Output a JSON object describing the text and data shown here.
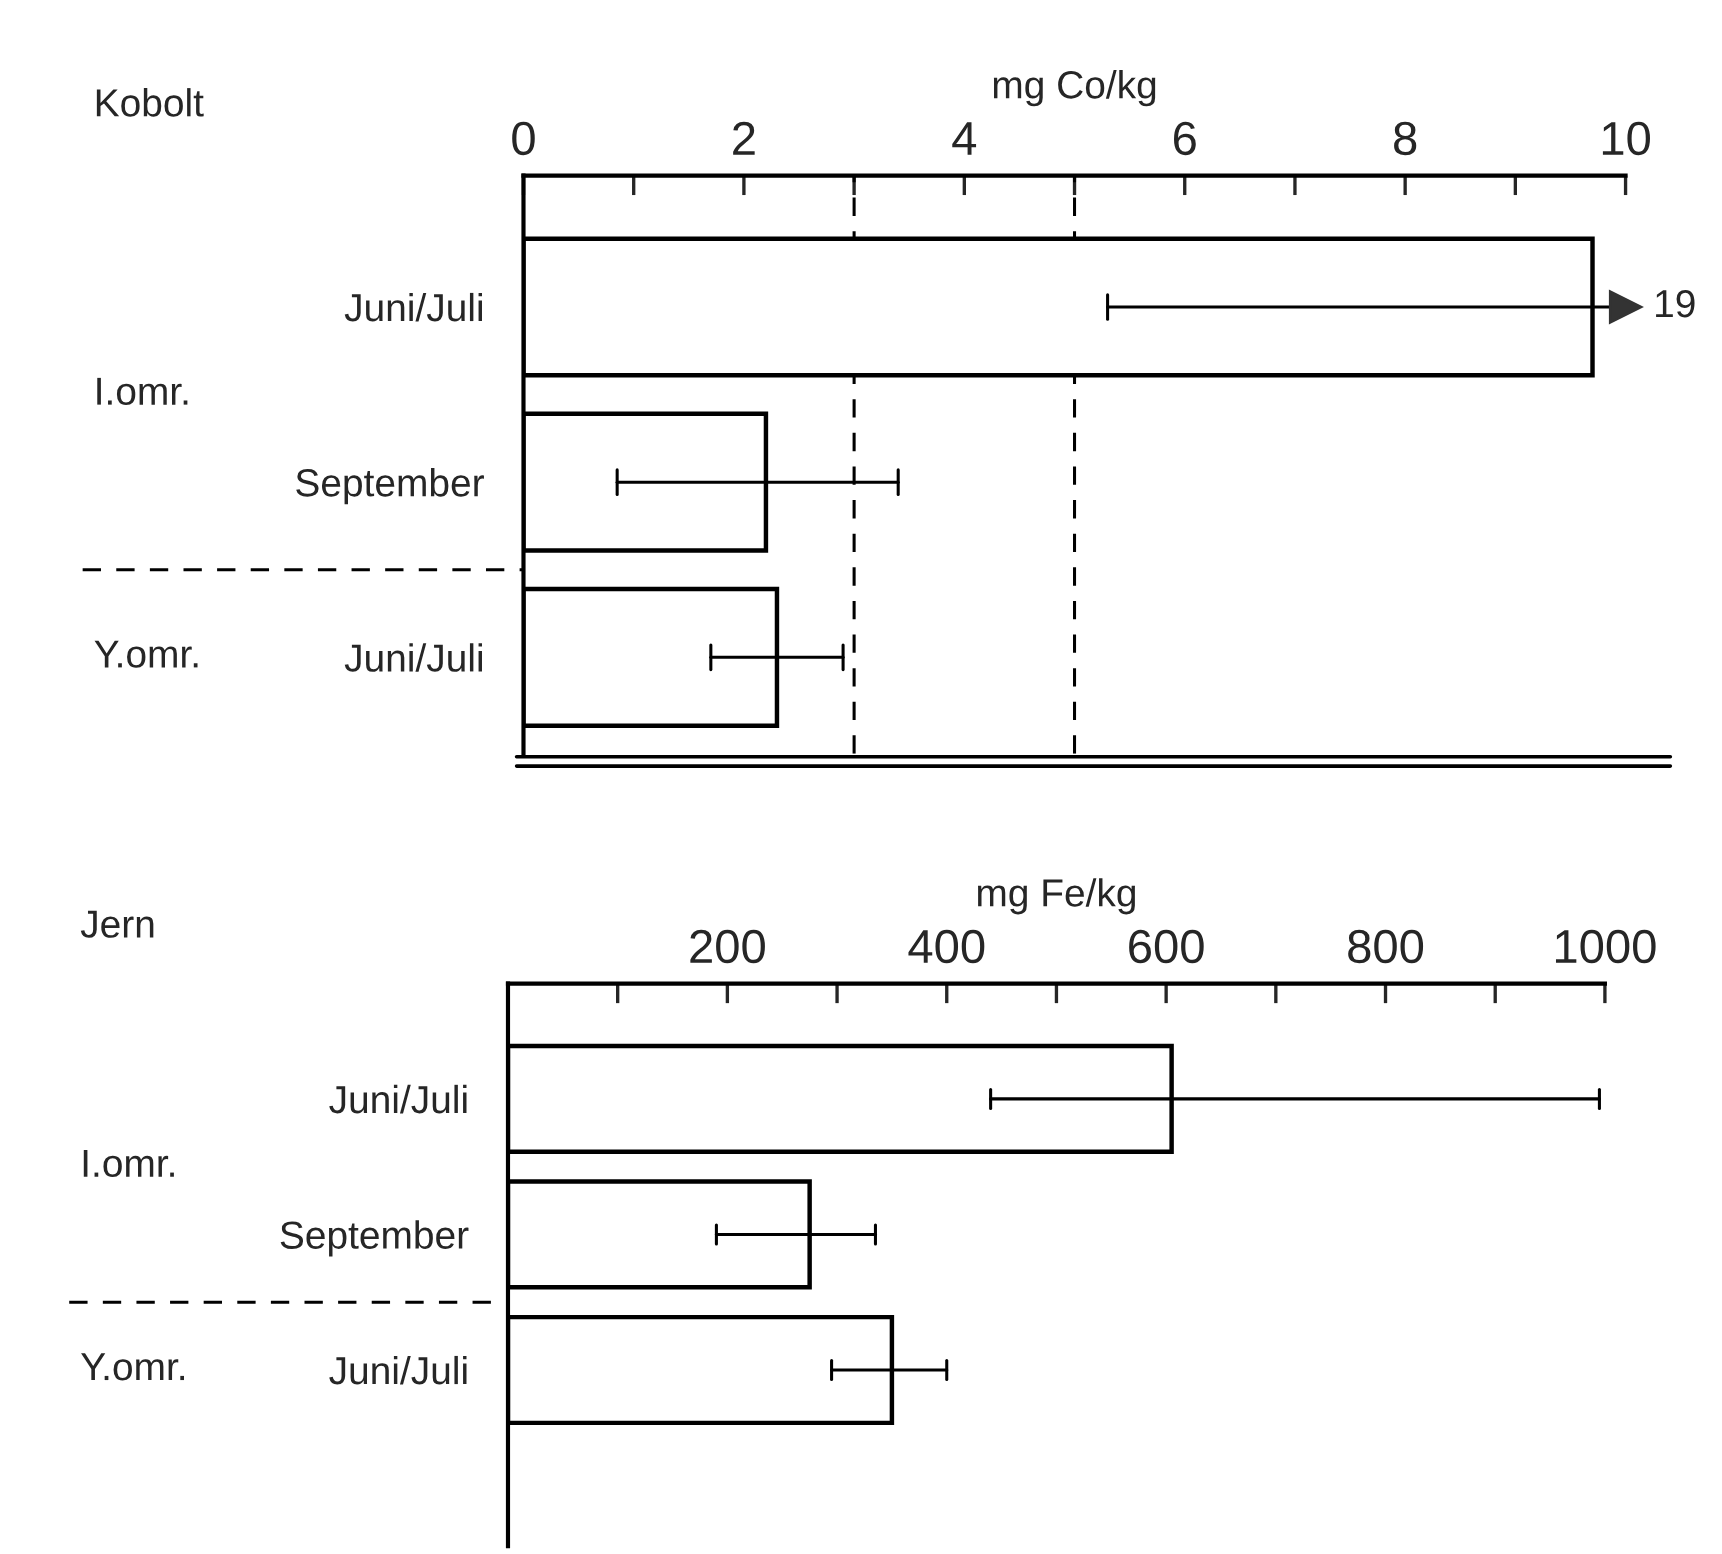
{
  "chart_data": [
    {
      "type": "bar",
      "orientation": "horizontal",
      "title": "Kobolt",
      "xlabel": "mg Co/kg",
      "categories": [
        "Juni/Juli",
        "September",
        "Juni/Juli"
      ],
      "values": [
        9.7,
        2.2,
        2.3
      ],
      "color": "#ffffff",
      "errors": [
        [
          5.3,
          10
        ],
        [
          0.85,
          3.4
        ],
        [
          1.7,
          2.9
        ]
      ],
      "xlim": [
        0,
        10
      ],
      "xticks": [
        0,
        {
          "value": 1,
          "label": null
        },
        2,
        {
          "value": 3,
          "label": null
        },
        4,
        {
          "value": 5,
          "label": null
        },
        6,
        {
          "value": 7,
          "label": null
        },
        8,
        {
          "value": 9,
          "label": null
        },
        10
      ],
      "ref_lines": [
        {
          "axis": "x",
          "value": 3,
          "line_style": "dashed"
        },
        {
          "axis": "x",
          "value": 5,
          "line_style": "dashed"
        }
      ],
      "annotations": [
        "I.omr.",
        "Y.omr.",
        "19"
      ]
    },
    {
      "type": "bar",
      "orientation": "horizontal",
      "title": "Jern",
      "xlabel": "mg Fe/kg",
      "categories": [
        "Juni/Juli",
        "September",
        "Juni/Juli"
      ],
      "values": [
        605,
        275,
        350
      ],
      "color": "#ffffff",
      "errors": [
        [
          440,
          995
        ],
        [
          190,
          335
        ],
        [
          295,
          400
        ]
      ],
      "xlim": [
        0,
        1000
      ],
      "xticks": [
        {
          "value": 100,
          "label": null
        },
        200,
        {
          "value": 300,
          "label": null
        },
        400,
        {
          "value": 500,
          "label": null
        },
        600,
        {
          "value": 700,
          "label": null
        },
        800,
        {
          "value": 900,
          "label": null
        },
        1000
      ],
      "annotations": [
        "I.omr.",
        "Y.omr."
      ]
    }
  ]
}
